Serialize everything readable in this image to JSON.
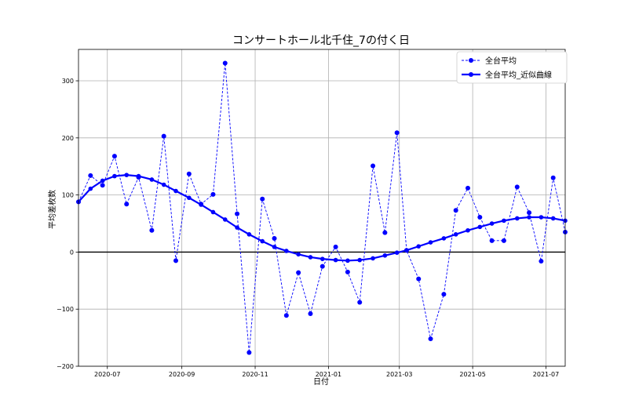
{
  "chart_data": {
    "type": "line",
    "title": "コンサートホール北千住_7の付く日",
    "xlabel": "日付",
    "ylabel": "平均差枚数",
    "x_axis": "date",
    "xlim": [
      "2020-06-07",
      "2021-07-17"
    ],
    "ylim": [
      -200,
      355
    ],
    "x_ticks": [
      "2020-07",
      "2020-09",
      "2020-11",
      "2021-01",
      "2021-03",
      "2021-05",
      "2021-07"
    ],
    "x_tick_dates": [
      "2020-07-01",
      "2020-09-01",
      "2020-11-01",
      "2021-01-01",
      "2021-03-01",
      "2021-05-01",
      "2021-07-01"
    ],
    "y_ticks": [
      -200,
      -100,
      0,
      100,
      200,
      300
    ],
    "y_tick_labels": [
      "−200",
      "−100",
      "0",
      "100",
      "200",
      "300"
    ],
    "grid": true,
    "zero_line": true,
    "legend_position": "upper-right",
    "colors": {
      "series": "#0000ff",
      "zero_line": "#000000",
      "grid": "#b0b0b0"
    },
    "x": [
      "2020-06-07",
      "2020-06-17",
      "2020-06-27",
      "2020-07-07",
      "2020-07-17",
      "2020-07-27",
      "2020-08-07",
      "2020-08-17",
      "2020-08-27",
      "2020-09-07",
      "2020-09-17",
      "2020-09-27",
      "2020-10-07",
      "2020-10-17",
      "2020-10-27",
      "2020-11-07",
      "2020-11-17",
      "2020-11-27",
      "2020-12-07",
      "2020-12-17",
      "2020-12-27",
      "2021-01-07",
      "2021-01-17",
      "2021-01-27",
      "2021-02-07",
      "2021-02-17",
      "2021-02-27",
      "2021-03-07",
      "2021-03-17",
      "2021-03-27",
      "2021-04-07",
      "2021-04-17",
      "2021-04-27",
      "2021-05-07",
      "2021-05-17",
      "2021-05-27",
      "2021-06-07",
      "2021-06-17",
      "2021-06-27",
      "2021-07-07",
      "2021-07-17"
    ],
    "series": [
      {
        "name": "全台平均",
        "style": "dashed",
        "values": [
          88,
          134,
          117,
          168,
          84,
          131,
          38,
          203,
          -15,
          137,
          84,
          101,
          331,
          67,
          -176,
          93,
          24,
          -111,
          -36,
          -108,
          -25,
          9,
          -35,
          -88,
          151,
          34,
          209,
          3,
          -47,
          -152,
          -74,
          73,
          112,
          61,
          20,
          20,
          114,
          69,
          -16,
          130,
          35
        ]
      },
      {
        "name": "全台平均_近似曲線",
        "style": "solid",
        "values": [
          88,
          111,
          125,
          133,
          135,
          133,
          127,
          118,
          107,
          95,
          83,
          70,
          57,
          43,
          31,
          19,
          9,
          2,
          -4,
          -9,
          -12,
          -14,
          -15,
          -14,
          -11,
          -6,
          -1,
          3,
          10,
          17,
          24,
          31,
          38,
          44,
          50,
          55,
          59,
          61,
          61,
          59,
          55
        ]
      }
    ]
  }
}
